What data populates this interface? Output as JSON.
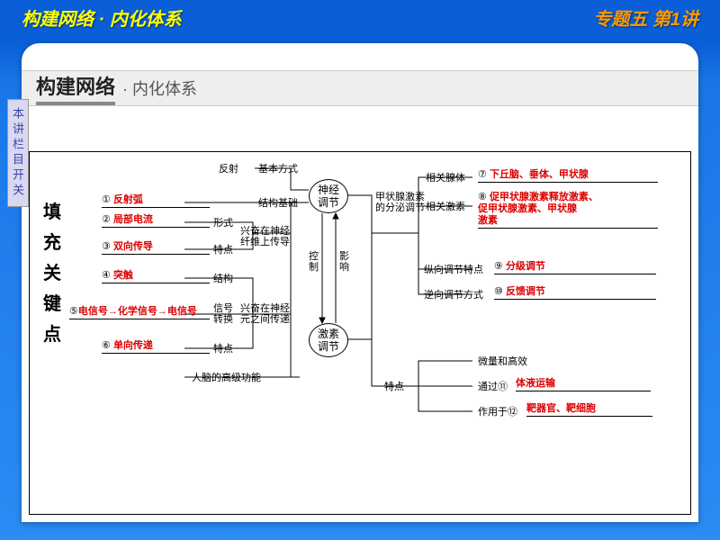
{
  "header": {
    "left": "构建网络 · 内化体系",
    "right": "专题五 第1讲"
  },
  "title": {
    "main": "构建网络",
    "sub": "· 内化体系"
  },
  "tab": "本讲栏目开关",
  "vtitle": "填充关键点",
  "ovals": {
    "neural": "神经\n调节",
    "hormone": "激素\n调节"
  },
  "left_items": {
    "i1": {
      "num": "①",
      "text": "反射弧"
    },
    "i2": {
      "num": "②",
      "text": "局部电流"
    },
    "i3": {
      "num": "③",
      "text": "双向传导"
    },
    "i4": {
      "num": "④",
      "text": "突触"
    },
    "i5": {
      "num": "⑤",
      "text": "电信号→化学信号→电信号"
    },
    "i6": {
      "num": "⑥",
      "text": "单向传递"
    }
  },
  "left_labels": {
    "reflex": "反射",
    "basic": "基本方式",
    "struct_base": "结构基础",
    "form": "形式",
    "feat": "特点",
    "nerve_fiber": "兴奋在神经\n纤维上传导",
    "struct": "结构",
    "signal": "信号\n转换",
    "neuron": "兴奋在神经\n元之间传递",
    "brain": "人脑的高级功能",
    "control": "控\n制",
    "affect": "影\n响"
  },
  "right_items": {
    "i7": {
      "num": "⑦",
      "text": "下丘脑、垂体、甲状腺"
    },
    "i8": {
      "num": "⑧",
      "text": "促甲状腺激素释放激素、\n促甲状腺激素、甲状腺\n激素"
    },
    "i9": {
      "num": "⑨",
      "text": "分级调节"
    },
    "i10": {
      "num": "⑩",
      "text": "反馈调节"
    },
    "i11": {
      "num": "⑪",
      "text": "体液运输"
    },
    "i12": {
      "num": "⑫",
      "text": "靶器官、靶细胞"
    }
  },
  "right_labels": {
    "gland": "相关腺体",
    "thyroid": "甲状腺激素\n的分泌调节",
    "hormone_rel": "相关激素",
    "vert": "纵向调节特点",
    "reverse": "逆向调节方式",
    "char": "特点",
    "micro": "微量和高效",
    "via": "通过",
    "act": "作用于"
  },
  "colors": {
    "header_left": "#ffff00",
    "header_right": "#ff9900",
    "red": "#d00"
  }
}
